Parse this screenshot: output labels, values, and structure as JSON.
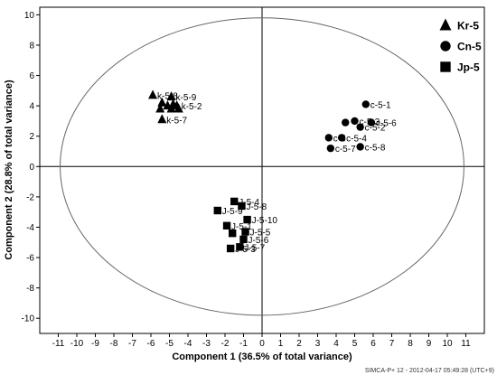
{
  "chart_data": {
    "type": "scatter",
    "xlabel": "Component 1 (36.5% of total variance)",
    "ylabel": "Component 2 (28.8% of total variance)",
    "xlim": [
      -12,
      12
    ],
    "ylim": [
      -11,
      10.5
    ],
    "xticks": [
      -11,
      -10,
      -9,
      -8,
      -7,
      -6,
      -5,
      -4,
      -3,
      -2,
      -1,
      0,
      1,
      2,
      3,
      4,
      5,
      6,
      7,
      8,
      9,
      10,
      11
    ],
    "yticks": [
      -10,
      -8,
      -6,
      -4,
      -2,
      0,
      2,
      4,
      6,
      8,
      10
    ],
    "zero_lines": true,
    "ellipse": {
      "center": [
        0,
        0
      ],
      "rx": 10.9,
      "ry": 9.8
    },
    "legend": {
      "position": "top-right"
    },
    "series": [
      {
        "name": "Kr-5",
        "marker": "triangle",
        "points": [
          {
            "x": -5.9,
            "y": 4.7,
            "label": "k-5-8"
          },
          {
            "x": -4.9,
            "y": 4.6,
            "label": "k-5-9"
          },
          {
            "x": -5.4,
            "y": 4.2,
            "label": ""
          },
          {
            "x": -4.8,
            "y": 4.1,
            "label": ""
          },
          {
            "x": -5.1,
            "y": 4.0,
            "label": ""
          },
          {
            "x": -4.6,
            "y": 4.0,
            "label": "k-5-2"
          },
          {
            "x": -5.5,
            "y": 3.8,
            "label": ""
          },
          {
            "x": -4.9,
            "y": 3.8,
            "label": ""
          },
          {
            "x": -4.5,
            "y": 3.8,
            "label": ""
          },
          {
            "x": -5.4,
            "y": 3.1,
            "label": "k-5-7"
          }
        ]
      },
      {
        "name": "Cn-5",
        "marker": "circle",
        "points": [
          {
            "x": 5.6,
            "y": 4.1,
            "label": "c-5-1"
          },
          {
            "x": 5.0,
            "y": 3.0,
            "label": "c-5-3"
          },
          {
            "x": 4.5,
            "y": 2.9,
            "label": ""
          },
          {
            "x": 5.9,
            "y": 2.9,
            "label": "c-5-6"
          },
          {
            "x": 5.3,
            "y": 2.6,
            "label": "c-5-2"
          },
          {
            "x": 3.6,
            "y": 1.9,
            "label": "c-5"
          },
          {
            "x": 4.3,
            "y": 1.9,
            "label": "c-5-4"
          },
          {
            "x": 3.7,
            "y": 1.2,
            "label": "c-5-7"
          },
          {
            "x": 5.3,
            "y": 1.3,
            "label": "c-5-8"
          }
        ]
      },
      {
        "name": "Jp-5",
        "marker": "square",
        "points": [
          {
            "x": -1.5,
            "y": -2.3,
            "label": "J-5-4"
          },
          {
            "x": -1.1,
            "y": -2.6,
            "label": "J-5-8"
          },
          {
            "x": -2.4,
            "y": -2.9,
            "label": "J-5-9"
          },
          {
            "x": -0.8,
            "y": -3.5,
            "label": "J-5-10"
          },
          {
            "x": -1.9,
            "y": -3.9,
            "label": "J-5-1"
          },
          {
            "x": -0.9,
            "y": -4.3,
            "label": "J-5-5"
          },
          {
            "x": -1.6,
            "y": -4.4,
            "label": ""
          },
          {
            "x": -1.0,
            "y": -4.8,
            "label": "J-5-6"
          },
          {
            "x": -1.2,
            "y": -5.3,
            "label": "J-5-7"
          },
          {
            "x": -1.7,
            "y": -5.4,
            "label": "J-5-3"
          }
        ]
      }
    ]
  },
  "footer_text": "SIMCA-P+ 12 - 2012-04-17 05:49:28 (UTC+9)"
}
